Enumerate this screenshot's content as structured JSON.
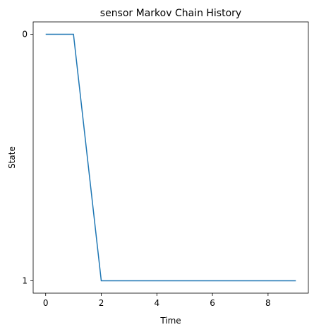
{
  "chart_data": {
    "type": "line",
    "title": "sensor Markov Chain History",
    "x_label": "Time",
    "y_label": "State",
    "x": [
      0,
      1,
      2,
      3,
      4,
      5,
      6,
      7,
      8,
      9
    ],
    "series": [
      {
        "name": "sensor",
        "color": "#1f77b4",
        "values": [
          0,
          0,
          1,
          1,
          1,
          1,
          1,
          1,
          1,
          1
        ]
      }
    ],
    "xlim": [
      -0.45,
      9.45
    ],
    "xticks": [
      0,
      2,
      4,
      6,
      8
    ],
    "ylim": [
      1.05,
      -0.05
    ],
    "yticks": [
      0,
      1
    ]
  }
}
